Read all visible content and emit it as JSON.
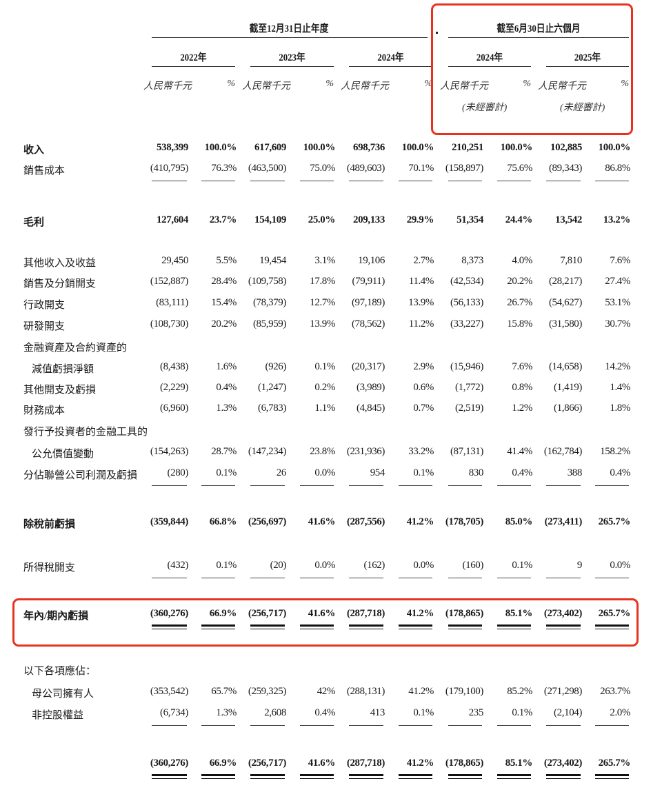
{
  "header": {
    "annual_group": "截至12月31日止年度",
    "interim_group": "截至6月30日止六個月",
    "years": [
      "2022年",
      "2023年",
      "2024年",
      "2024年",
      "2025年"
    ],
    "unit_amount": "人民幣千元",
    "unit_percent": "%",
    "unaudited": "(未經審計)"
  },
  "highlight_color": "#e8321e",
  "rows": [
    {
      "label": "收入",
      "bold": true,
      "values": [
        "538,399",
        "100.0%",
        "617,609",
        "100.0%",
        "698,736",
        "100.0%",
        "210,251",
        "100.0%",
        "102,885",
        "100.0%"
      ]
    },
    {
      "label": "銷售成本",
      "values": [
        "(410,795)",
        "76.3%",
        "(463,500)",
        "75.0%",
        "(489,603)",
        "70.1%",
        "(158,897)",
        "75.6%",
        "(89,343)",
        "86.8%"
      ]
    },
    {
      "label": "毛利",
      "bold": true,
      "values": [
        "127,604",
        "23.7%",
        "154,109",
        "25.0%",
        "209,133",
        "29.9%",
        "51,354",
        "24.4%",
        "13,542",
        "13.2%"
      ]
    },
    {
      "label": "其他收入及收益",
      "values": [
        "29,450",
        "5.5%",
        "19,454",
        "3.1%",
        "19,106",
        "2.7%",
        "8,373",
        "4.0%",
        "7,810",
        "7.6%"
      ]
    },
    {
      "label": "銷售及分銷開支",
      "values": [
        "(152,887)",
        "28.4%",
        "(109,758)",
        "17.8%",
        "(79,911)",
        "11.4%",
        "(42,534)",
        "20.2%",
        "(28,217)",
        "27.4%"
      ]
    },
    {
      "label": "行政開支",
      "values": [
        "(83,111)",
        "15.4%",
        "(78,379)",
        "12.7%",
        "(97,189)",
        "13.9%",
        "(56,133)",
        "26.7%",
        "(54,627)",
        "53.1%"
      ]
    },
    {
      "label": "研發開支",
      "values": [
        "(108,730)",
        "20.2%",
        "(85,959)",
        "13.9%",
        "(78,562)",
        "11.2%",
        "(33,227)",
        "15.8%",
        "(31,580)",
        "30.7%"
      ]
    },
    {
      "label": "金融資產及合約資產的",
      "values": []
    },
    {
      "label": "減值虧損淨額",
      "indent": true,
      "values": [
        "(8,438)",
        "1.6%",
        "(926)",
        "0.1%",
        "(20,317)",
        "2.9%",
        "(15,946)",
        "7.6%",
        "(14,658)",
        "14.2%"
      ]
    },
    {
      "label": "其他開支及虧損",
      "values": [
        "(2,229)",
        "0.4%",
        "(1,247)",
        "0.2%",
        "(3,989)",
        "0.6%",
        "(1,772)",
        "0.8%",
        "(1,419)",
        "1.4%"
      ]
    },
    {
      "label": "財務成本",
      "values": [
        "(6,960)",
        "1.3%",
        "(6,783)",
        "1.1%",
        "(4,845)",
        "0.7%",
        "(2,519)",
        "1.2%",
        "(1,866)",
        "1.8%"
      ]
    },
    {
      "label": "發行予投資者的金融工具的",
      "values": []
    },
    {
      "label": "公允價值變動",
      "indent": true,
      "values": [
        "(154,263)",
        "28.7%",
        "(147,234)",
        "23.8%",
        "(231,936)",
        "33.2%",
        "(87,131)",
        "41.4%",
        "(162,784)",
        "158.2%"
      ]
    },
    {
      "label": "分佔聯營公司利潤及虧損",
      "values": [
        "(280)",
        "0.1%",
        "26",
        "0.0%",
        "954",
        "0.1%",
        "830",
        "0.4%",
        "388",
        "0.4%"
      ]
    },
    {
      "label": "除稅前虧損",
      "bold": true,
      "values": [
        "(359,844)",
        "66.8%",
        "(256,697)",
        "41.6%",
        "(287,556)",
        "41.2%",
        "(178,705)",
        "85.0%",
        "(273,411)",
        "265.7%"
      ]
    },
    {
      "label": "所得稅開支",
      "values": [
        "(432)",
        "0.1%",
        "(20)",
        "0.0%",
        "(162)",
        "0.0%",
        "(160)",
        "0.1%",
        "9",
        "0.0%"
      ]
    },
    {
      "label": "年內/期內虧損",
      "bold": true,
      "values": [
        "(360,276)",
        "66.9%",
        "(256,717)",
        "41.6%",
        "(287,718)",
        "41.2%",
        "(178,865)",
        "85.1%",
        "(273,402)",
        "265.7%"
      ]
    },
    {
      "label": "以下各項應佔：",
      "values": []
    },
    {
      "label": "母公司擁有人",
      "indent": true,
      "values": [
        "(353,542)",
        "65.7%",
        "(259,325)",
        "42%",
        "(288,131)",
        "41.2%",
        "(179,100)",
        "85.2%",
        "(271,298)",
        "263.7%"
      ]
    },
    {
      "label": "非控股權益",
      "indent": true,
      "values": [
        "(6,734)",
        "1.3%",
        "2,608",
        "0.4%",
        "413",
        "0.1%",
        "235",
        "0.1%",
        "(2,104)",
        "2.0%"
      ]
    },
    {
      "label": "",
      "bold": true,
      "values": [
        "(360,276)",
        "66.9%",
        "(256,717)",
        "41.6%",
        "(287,718)",
        "41.2%",
        "(178,865)",
        "85.1%",
        "(273,402)",
        "265.7%"
      ]
    }
  ]
}
